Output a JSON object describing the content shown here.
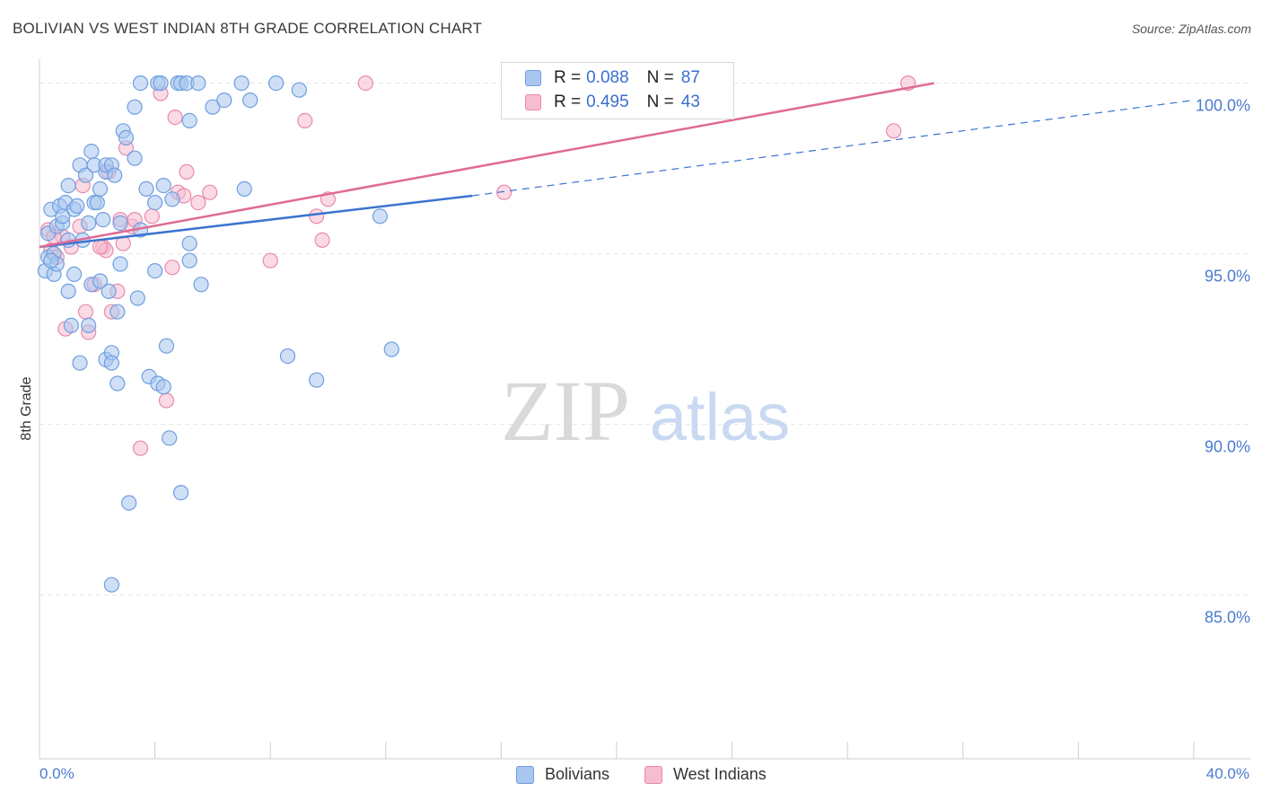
{
  "title": "BOLIVIAN VS WEST INDIAN 8TH GRADE CORRELATION CHART",
  "source": "Source: ZipAtlas.com",
  "watermark": {
    "zip": "ZIP",
    "atlas": "atlas"
  },
  "legend": {
    "rows": [
      {
        "r_label": "R =",
        "r_value": "0.088",
        "n_label": "N =",
        "n_value": "87"
      },
      {
        "r_label": "R =",
        "r_value": "0.495",
        "n_label": "N =",
        "n_value": "43"
      }
    ]
  },
  "bottom_legend": {
    "bolivians": "Bolivians",
    "west_indians": "West Indians"
  },
  "colors": {
    "blue_fill": "#a8c6ef",
    "blue_stroke": "#6f9ee0",
    "blue_line": "#3a74d0",
    "pink_fill": "#f6bcd0",
    "pink_stroke": "#e88aab",
    "pink_line": "#e06a94",
    "tick_text": "#4a7bd0",
    "grid": "#e4e4e4"
  },
  "chart_data": {
    "type": "scatter",
    "title": "BOLIVIAN VS WEST INDIAN 8TH GRADE CORRELATION CHART",
    "xlabel": "",
    "ylabel": "8th Grade",
    "xlim": [
      0,
      40
    ],
    "ylim": [
      80.2,
      100.7
    ],
    "x_tick_labels": [
      "0.0%",
      "40.0%"
    ],
    "y_ticks": [
      85,
      90,
      95,
      100
    ],
    "y_tick_labels": [
      "85.0%",
      "90.0%",
      "95.0%",
      "100.0%"
    ],
    "series": [
      {
        "name": "Bolivians",
        "r": 0.088,
        "n": 87,
        "trend": {
          "x": [
            0,
            15
          ],
          "y": [
            95.2,
            96.7
          ],
          "dashed_to_x": 40,
          "dashed_to_y": 99.5
        },
        "points": [
          [
            0.2,
            94.5
          ],
          [
            0.3,
            94.9
          ],
          [
            0.3,
            95.6
          ],
          [
            0.4,
            96.3
          ],
          [
            0.5,
            95.0
          ],
          [
            0.5,
            94.4
          ],
          [
            0.6,
            94.7
          ],
          [
            0.6,
            95.8
          ],
          [
            0.7,
            96.4
          ],
          [
            0.8,
            95.9
          ],
          [
            0.8,
            96.1
          ],
          [
            0.9,
            96.5
          ],
          [
            1.0,
            93.9
          ],
          [
            1.0,
            97.0
          ],
          [
            1.1,
            92.9
          ],
          [
            1.2,
            96.3
          ],
          [
            1.2,
            94.4
          ],
          [
            1.3,
            96.4
          ],
          [
            1.4,
            97.6
          ],
          [
            1.4,
            91.8
          ],
          [
            1.5,
            95.4
          ],
          [
            1.6,
            97.3
          ],
          [
            1.7,
            95.9
          ],
          [
            1.7,
            92.9
          ],
          [
            1.8,
            98.0
          ],
          [
            1.8,
            94.1
          ],
          [
            1.9,
            97.6
          ],
          [
            1.9,
            96.5
          ],
          [
            2.0,
            96.5
          ],
          [
            2.1,
            96.9
          ],
          [
            2.1,
            94.2
          ],
          [
            2.2,
            96.0
          ],
          [
            2.3,
            97.4
          ],
          [
            2.3,
            97.6
          ],
          [
            2.3,
            91.9
          ],
          [
            2.4,
            93.9
          ],
          [
            2.5,
            97.6
          ],
          [
            2.5,
            92.1
          ],
          [
            2.5,
            91.8
          ],
          [
            2.6,
            97.3
          ],
          [
            2.7,
            93.3
          ],
          [
            2.7,
            91.2
          ],
          [
            2.8,
            94.7
          ],
          [
            2.8,
            95.9
          ],
          [
            2.9,
            98.6
          ],
          [
            3.0,
            98.4
          ],
          [
            3.1,
            87.7
          ],
          [
            3.3,
            99.3
          ],
          [
            3.3,
            97.8
          ],
          [
            3.4,
            93.7
          ],
          [
            3.5,
            95.7
          ],
          [
            3.5,
            100.0
          ],
          [
            3.7,
            96.9
          ],
          [
            3.8,
            91.4
          ],
          [
            4.0,
            96.5
          ],
          [
            4.0,
            94.5
          ],
          [
            4.1,
            91.2
          ],
          [
            4.1,
            100.0
          ],
          [
            4.2,
            100.0
          ],
          [
            4.3,
            97.0
          ],
          [
            4.3,
            91.1
          ],
          [
            4.4,
            92.3
          ],
          [
            4.5,
            89.6
          ],
          [
            4.6,
            96.6
          ],
          [
            4.8,
            100.0
          ],
          [
            4.9,
            100.0
          ],
          [
            4.9,
            88.0
          ],
          [
            5.1,
            100.0
          ],
          [
            5.2,
            98.9
          ],
          [
            5.2,
            95.3
          ],
          [
            5.2,
            94.8
          ],
          [
            5.5,
            100.0
          ],
          [
            5.6,
            94.1
          ],
          [
            6.0,
            99.3
          ],
          [
            6.4,
            99.5
          ],
          [
            7.0,
            100.0
          ],
          [
            7.1,
            96.9
          ],
          [
            7.3,
            99.5
          ],
          [
            8.2,
            100.0
          ],
          [
            8.6,
            92.0
          ],
          [
            9.0,
            99.8
          ],
          [
            9.6,
            91.3
          ],
          [
            11.8,
            96.1
          ],
          [
            12.2,
            92.2
          ],
          [
            2.5,
            85.3
          ],
          [
            1.0,
            95.4
          ],
          [
            0.4,
            94.8
          ]
        ]
      },
      {
        "name": "West Indians",
        "r": 0.495,
        "n": 43,
        "trend": {
          "x": [
            0,
            31
          ],
          "y": [
            95.2,
            100.0
          ]
        },
        "points": [
          [
            0.3,
            95.7
          ],
          [
            0.4,
            95.1
          ],
          [
            0.6,
            94.9
          ],
          [
            0.8,
            95.5
          ],
          [
            0.9,
            92.8
          ],
          [
            1.1,
            95.2
          ],
          [
            1.4,
            95.8
          ],
          [
            1.5,
            97.0
          ],
          [
            1.6,
            93.3
          ],
          [
            1.7,
            92.7
          ],
          [
            1.9,
            94.1
          ],
          [
            2.2,
            95.2
          ],
          [
            2.3,
            95.1
          ],
          [
            2.4,
            97.4
          ],
          [
            2.5,
            93.3
          ],
          [
            2.7,
            93.9
          ],
          [
            2.8,
            96.0
          ],
          [
            2.9,
            95.3
          ],
          [
            3.0,
            98.1
          ],
          [
            3.2,
            95.8
          ],
          [
            3.3,
            96.0
          ],
          [
            3.5,
            89.3
          ],
          [
            3.9,
            96.1
          ],
          [
            4.2,
            99.7
          ],
          [
            4.4,
            90.7
          ],
          [
            4.6,
            94.6
          ],
          [
            4.7,
            99.0
          ],
          [
            4.8,
            96.8
          ],
          [
            5.0,
            96.7
          ],
          [
            5.1,
            97.4
          ],
          [
            5.5,
            96.5
          ],
          [
            5.9,
            96.8
          ],
          [
            8.0,
            94.8
          ],
          [
            9.2,
            98.9
          ],
          [
            9.6,
            96.1
          ],
          [
            9.8,
            95.4
          ],
          [
            10.0,
            96.6
          ],
          [
            11.3,
            100.0
          ],
          [
            16.1,
            96.8
          ],
          [
            29.6,
            98.6
          ],
          [
            30.1,
            100.0
          ],
          [
            2.1,
            95.2
          ],
          [
            0.5,
            95.5
          ]
        ]
      }
    ]
  }
}
